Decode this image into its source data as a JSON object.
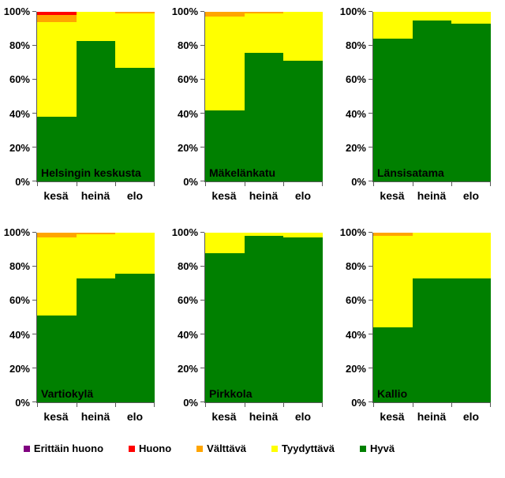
{
  "colors": {
    "Hyvä": "#008000",
    "Tyydyttävä": "#FFFF00",
    "Välttävä": "#FFA500",
    "Huono": "#FF0000",
    "Erittäin huono": "#800080"
  },
  "chart_data": [
    {
      "type": "bar",
      "stacked": true,
      "title": "Helsingin keskusta",
      "categories": [
        "kesä",
        "heinä",
        "elo"
      ],
      "series": [
        {
          "name": "Hyvä",
          "values": [
            38,
            83,
            67
          ]
        },
        {
          "name": "Tyydyttävä",
          "values": [
            56,
            17,
            32
          ]
        },
        {
          "name": "Välttävä",
          "values": [
            4,
            0,
            1
          ]
        },
        {
          "name": "Huono",
          "values": [
            2,
            0,
            0
          ]
        },
        {
          "name": "Erittäin huono",
          "values": [
            0,
            0,
            0
          ]
        }
      ],
      "ylim": [
        0,
        100
      ],
      "yticks": [
        0,
        20,
        40,
        60,
        80,
        100
      ],
      "ytick_labels": [
        "0%",
        "20%",
        "40%",
        "60%",
        "80%",
        "100%"
      ],
      "grid": false
    },
    {
      "type": "bar",
      "stacked": true,
      "title": "Mäkelänkatu",
      "categories": [
        "kesä",
        "heinä",
        "elo"
      ],
      "series": [
        {
          "name": "Hyvä",
          "values": [
            42,
            76,
            71
          ]
        },
        {
          "name": "Tyydyttävä",
          "values": [
            55,
            23,
            29
          ]
        },
        {
          "name": "Välttävä",
          "values": [
            3,
            1,
            0
          ]
        },
        {
          "name": "Huono",
          "values": [
            0,
            0,
            0
          ]
        },
        {
          "name": "Erittäin huono",
          "values": [
            0,
            0,
            0
          ]
        }
      ],
      "ylim": [
        0,
        100
      ],
      "yticks": [
        0,
        20,
        40,
        60,
        80,
        100
      ],
      "ytick_labels": [
        "0%",
        "20%",
        "40%",
        "60%",
        "80%",
        "100%"
      ],
      "grid": false
    },
    {
      "type": "bar",
      "stacked": true,
      "title": "Länsisatama",
      "categories": [
        "kesä",
        "heinä",
        "elo"
      ],
      "series": [
        {
          "name": "Hyvä",
          "values": [
            84,
            95,
            93
          ]
        },
        {
          "name": "Tyydyttävä",
          "values": [
            16,
            5,
            7
          ]
        },
        {
          "name": "Välttävä",
          "values": [
            0,
            0,
            0
          ]
        },
        {
          "name": "Huono",
          "values": [
            0,
            0,
            0
          ]
        },
        {
          "name": "Erittäin huono",
          "values": [
            0,
            0,
            0
          ]
        }
      ],
      "ylim": [
        0,
        100
      ],
      "yticks": [
        0,
        20,
        40,
        60,
        80,
        100
      ],
      "ytick_labels": [
        "0%",
        "20%",
        "40%",
        "60%",
        "80%",
        "100%"
      ],
      "grid": false
    },
    {
      "type": "bar",
      "stacked": true,
      "title": "Vartiokylä",
      "categories": [
        "kesä",
        "heinä",
        "elo"
      ],
      "series": [
        {
          "name": "Hyvä",
          "values": [
            51,
            73,
            76
          ]
        },
        {
          "name": "Tyydyttävä",
          "values": [
            46,
            26,
            24
          ]
        },
        {
          "name": "Välttävä",
          "values": [
            3,
            1,
            0
          ]
        },
        {
          "name": "Huono",
          "values": [
            0,
            0,
            0
          ]
        },
        {
          "name": "Erittäin huono",
          "values": [
            0,
            0,
            0
          ]
        }
      ],
      "ylim": [
        0,
        100
      ],
      "yticks": [
        0,
        20,
        40,
        60,
        80,
        100
      ],
      "ytick_labels": [
        "0%",
        "20%",
        "40%",
        "60%",
        "80%",
        "100%"
      ],
      "grid": false
    },
    {
      "type": "bar",
      "stacked": true,
      "title": "Pirkkola",
      "categories": [
        "kesä",
        "heinä",
        "elo"
      ],
      "series": [
        {
          "name": "Hyvä",
          "values": [
            88,
            98,
            97
          ]
        },
        {
          "name": "Tyydyttävä",
          "values": [
            12,
            2,
            3
          ]
        },
        {
          "name": "Välttävä",
          "values": [
            0,
            0,
            0
          ]
        },
        {
          "name": "Huono",
          "values": [
            0,
            0,
            0
          ]
        },
        {
          "name": "Erittäin huono",
          "values": [
            0,
            0,
            0
          ]
        }
      ],
      "ylim": [
        0,
        100
      ],
      "yticks": [
        0,
        20,
        40,
        60,
        80,
        100
      ],
      "ytick_labels": [
        "0%",
        "20%",
        "40%",
        "60%",
        "80%",
        "100%"
      ],
      "grid": false
    },
    {
      "type": "bar",
      "stacked": true,
      "title": "Kallio",
      "categories": [
        "kesä",
        "heinä",
        "elo"
      ],
      "series": [
        {
          "name": "Hyvä",
          "values": [
            44,
            73,
            73
          ]
        },
        {
          "name": "Tyydyttävä",
          "values": [
            54,
            27,
            27
          ]
        },
        {
          "name": "Välttävä",
          "values": [
            2,
            0,
            0
          ]
        },
        {
          "name": "Huono",
          "values": [
            0,
            0,
            0
          ]
        },
        {
          "name": "Erittäin huono",
          "values": [
            0,
            0,
            0
          ]
        }
      ],
      "ylim": [
        0,
        100
      ],
      "yticks": [
        0,
        20,
        40,
        60,
        80,
        100
      ],
      "ytick_labels": [
        "0%",
        "20%",
        "40%",
        "60%",
        "80%",
        "100%"
      ],
      "grid": false
    }
  ],
  "legend": {
    "position": "bottom",
    "items": [
      {
        "label": "Erittäin huono",
        "color": "#800080"
      },
      {
        "label": "Huono",
        "color": "#FF0000"
      },
      {
        "label": "Välttävä",
        "color": "#FFA500"
      },
      {
        "label": "Tyydyttävä",
        "color": "#FFFF00"
      },
      {
        "label": "Hyvä",
        "color": "#008000"
      }
    ]
  }
}
